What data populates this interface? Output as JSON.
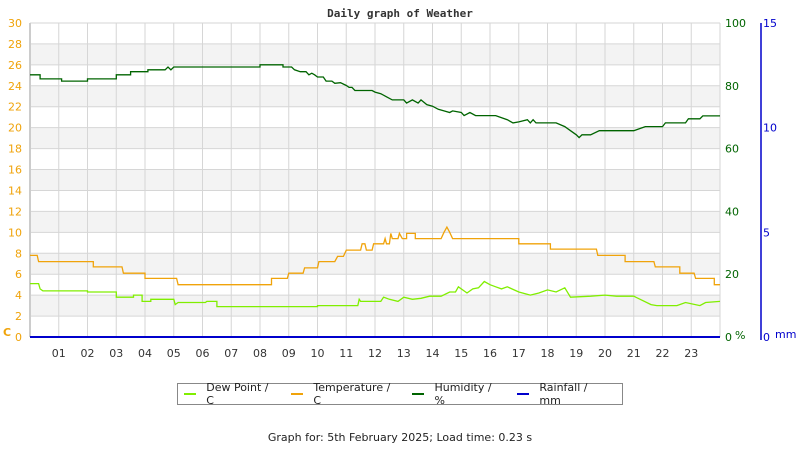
{
  "chart_data": {
    "type": "line",
    "title": "Daily graph of Weather",
    "xlabel": "",
    "x_ticks": [
      "01",
      "02",
      "03",
      "04",
      "05",
      "06",
      "07",
      "08",
      "09",
      "10",
      "11",
      "12",
      "13",
      "14",
      "15",
      "16",
      "17",
      "18",
      "19",
      "20",
      "21",
      "22",
      "23"
    ],
    "axes": {
      "left": {
        "label": "C",
        "ticks": [
          0,
          2,
          4,
          6,
          8,
          10,
          12,
          14,
          16,
          18,
          20,
          22,
          24,
          26,
          28,
          30
        ],
        "range": [
          0,
          30
        ],
        "color": "#f0a30a"
      },
      "right_humidity": {
        "label": "%",
        "ticks": [
          0,
          20,
          40,
          60,
          80,
          100
        ],
        "range": [
          0,
          100
        ],
        "color": "#006400"
      },
      "right_rainfall": {
        "label": "mm",
        "ticks": [
          0,
          5,
          10,
          15
        ],
        "range": [
          0,
          15
        ],
        "color": "#0000cc"
      }
    },
    "x_range": [
      0,
      24
    ],
    "grid": true,
    "legend_position": "bottom",
    "series": [
      {
        "name": "Dew Point / C",
        "axis": "left",
        "color": "#80ee00",
        "points": [
          [
            0,
            5.1
          ],
          [
            0.3,
            5.1
          ],
          [
            0.35,
            4.6
          ],
          [
            0.45,
            4.4
          ],
          [
            2.0,
            4.4
          ],
          [
            2.0,
            4.3
          ],
          [
            3.0,
            4.3
          ],
          [
            3.0,
            3.8
          ],
          [
            3.6,
            3.8
          ],
          [
            3.6,
            4.0
          ],
          [
            3.9,
            4.0
          ],
          [
            3.9,
            3.4
          ],
          [
            4.2,
            3.4
          ],
          [
            4.2,
            3.6
          ],
          [
            5.0,
            3.6
          ],
          [
            5.05,
            3.1
          ],
          [
            5.15,
            3.3
          ],
          [
            6.1,
            3.3
          ],
          [
            6.15,
            3.4
          ],
          [
            6.5,
            3.4
          ],
          [
            6.5,
            2.9
          ],
          [
            10.0,
            2.9
          ],
          [
            10.0,
            3.0
          ],
          [
            11.4,
            3.0
          ],
          [
            11.45,
            3.6
          ],
          [
            11.5,
            3.4
          ],
          [
            12.2,
            3.4
          ],
          [
            12.3,
            3.8
          ],
          [
            12.5,
            3.6
          ],
          [
            12.8,
            3.4
          ],
          [
            13.0,
            3.8
          ],
          [
            13.3,
            3.6
          ],
          [
            13.6,
            3.7
          ],
          [
            13.9,
            3.9
          ],
          [
            14.3,
            3.9
          ],
          [
            14.6,
            4.3
          ],
          [
            14.8,
            4.3
          ],
          [
            14.9,
            4.8
          ],
          [
            15.2,
            4.2
          ],
          [
            15.4,
            4.6
          ],
          [
            15.6,
            4.7
          ],
          [
            15.8,
            5.3
          ],
          [
            16.0,
            5.0
          ],
          [
            16.2,
            4.8
          ],
          [
            16.4,
            4.6
          ],
          [
            16.6,
            4.8
          ],
          [
            17.0,
            4.3
          ],
          [
            17.4,
            4.0
          ],
          [
            17.7,
            4.2
          ],
          [
            18.0,
            4.5
          ],
          [
            18.3,
            4.3
          ],
          [
            18.6,
            4.7
          ],
          [
            18.8,
            3.8
          ],
          [
            19.5,
            3.9
          ],
          [
            20.0,
            4.0
          ],
          [
            20.4,
            3.9
          ],
          [
            21.0,
            3.9
          ],
          [
            21.6,
            3.1
          ],
          [
            21.8,
            3.0
          ],
          [
            22.5,
            3.0
          ],
          [
            22.8,
            3.3
          ],
          [
            23.3,
            3.0
          ],
          [
            23.5,
            3.3
          ],
          [
            24.0,
            3.4
          ]
        ]
      },
      {
        "name": "Temperature / C",
        "axis": "left",
        "color": "#f0a30a",
        "points": [
          [
            0,
            7.8
          ],
          [
            0.25,
            7.8
          ],
          [
            0.3,
            7.2
          ],
          [
            2.2,
            7.2
          ],
          [
            2.2,
            6.7
          ],
          [
            3.2,
            6.7
          ],
          [
            3.25,
            6.1
          ],
          [
            4.0,
            6.1
          ],
          [
            4.0,
            5.6
          ],
          [
            5.1,
            5.6
          ],
          [
            5.15,
            5.0
          ],
          [
            8.4,
            5.0
          ],
          [
            8.4,
            5.6
          ],
          [
            8.95,
            5.6
          ],
          [
            9.0,
            6.1
          ],
          [
            9.5,
            6.1
          ],
          [
            9.55,
            6.6
          ],
          [
            10.0,
            6.6
          ],
          [
            10.05,
            7.2
          ],
          [
            10.6,
            7.2
          ],
          [
            10.7,
            7.7
          ],
          [
            10.9,
            7.7
          ],
          [
            11.0,
            8.3
          ],
          [
            11.5,
            8.3
          ],
          [
            11.55,
            8.9
          ],
          [
            11.65,
            8.9
          ],
          [
            11.7,
            8.3
          ],
          [
            11.9,
            8.3
          ],
          [
            11.95,
            8.9
          ],
          [
            12.3,
            8.9
          ],
          [
            12.35,
            9.4
          ],
          [
            12.4,
            8.9
          ],
          [
            12.5,
            8.9
          ],
          [
            12.55,
            9.9
          ],
          [
            12.6,
            9.4
          ],
          [
            12.8,
            9.4
          ],
          [
            12.85,
            9.9
          ],
          [
            12.95,
            9.4
          ],
          [
            13.1,
            9.4
          ],
          [
            13.1,
            9.9
          ],
          [
            13.4,
            9.9
          ],
          [
            13.4,
            9.4
          ],
          [
            14.3,
            9.4
          ],
          [
            14.4,
            10.0
          ],
          [
            14.5,
            10.5
          ],
          [
            14.6,
            10.0
          ],
          [
            14.7,
            9.4
          ],
          [
            17.0,
            9.4
          ],
          [
            17.0,
            8.9
          ],
          [
            18.1,
            8.9
          ],
          [
            18.1,
            8.4
          ],
          [
            19.7,
            8.4
          ],
          [
            19.75,
            7.8
          ],
          [
            20.7,
            7.8
          ],
          [
            20.7,
            7.2
          ],
          [
            21.7,
            7.2
          ],
          [
            21.75,
            6.7
          ],
          [
            22.6,
            6.7
          ],
          [
            22.6,
            6.1
          ],
          [
            23.1,
            6.1
          ],
          [
            23.15,
            5.6
          ],
          [
            23.8,
            5.6
          ],
          [
            23.8,
            5.0
          ],
          [
            24.0,
            5.0
          ]
        ]
      },
      {
        "name": "Humidity / %",
        "axis": "right_humidity",
        "color": "#006400",
        "points": [
          [
            0,
            83.5
          ],
          [
            0.35,
            83.5
          ],
          [
            0.35,
            82.2
          ],
          [
            1.1,
            82.2
          ],
          [
            1.1,
            81.5
          ],
          [
            2.0,
            81.5
          ],
          [
            2.0,
            82.2
          ],
          [
            3.0,
            82.2
          ],
          [
            3.0,
            83.5
          ],
          [
            3.5,
            83.5
          ],
          [
            3.5,
            84.5
          ],
          [
            4.1,
            84.5
          ],
          [
            4.1,
            85.1
          ],
          [
            4.7,
            85.1
          ],
          [
            4.8,
            86.0
          ],
          [
            4.9,
            85.1
          ],
          [
            5.0,
            86.0
          ],
          [
            8.0,
            86.0
          ],
          [
            8.0,
            86.7
          ],
          [
            8.8,
            86.7
          ],
          [
            8.8,
            86.0
          ],
          [
            9.1,
            86.0
          ],
          [
            9.2,
            85.1
          ],
          [
            9.4,
            84.5
          ],
          [
            9.6,
            84.5
          ],
          [
            9.7,
            83.5
          ],
          [
            9.8,
            84.0
          ],
          [
            9.9,
            83.5
          ],
          [
            10.0,
            82.8
          ],
          [
            10.2,
            82.8
          ],
          [
            10.3,
            81.5
          ],
          [
            10.5,
            81.5
          ],
          [
            10.6,
            80.8
          ],
          [
            10.8,
            81.0
          ],
          [
            11.0,
            80.1
          ],
          [
            11.1,
            79.5
          ],
          [
            11.2,
            79.5
          ],
          [
            11.3,
            78.5
          ],
          [
            11.9,
            78.5
          ],
          [
            12.0,
            78.0
          ],
          [
            12.2,
            77.5
          ],
          [
            12.4,
            76.5
          ],
          [
            12.6,
            75.5
          ],
          [
            13.0,
            75.5
          ],
          [
            13.1,
            74.5
          ],
          [
            13.3,
            75.5
          ],
          [
            13.5,
            74.5
          ],
          [
            13.6,
            75.5
          ],
          [
            13.8,
            74.0
          ],
          [
            14.0,
            73.5
          ],
          [
            14.2,
            72.5
          ],
          [
            14.4,
            72.0
          ],
          [
            14.6,
            71.5
          ],
          [
            14.7,
            72.0
          ],
          [
            15.0,
            71.5
          ],
          [
            15.1,
            70.5
          ],
          [
            15.3,
            71.5
          ],
          [
            15.5,
            70.5
          ],
          [
            16.2,
            70.5
          ],
          [
            16.6,
            69.2
          ],
          [
            16.8,
            68.2
          ],
          [
            17.0,
            68.5
          ],
          [
            17.3,
            69.2
          ],
          [
            17.4,
            68.2
          ],
          [
            17.5,
            69.2
          ],
          [
            17.6,
            68.2
          ],
          [
            18.3,
            68.2
          ],
          [
            18.6,
            67.0
          ],
          [
            18.8,
            65.7
          ],
          [
            19.0,
            64.4
          ],
          [
            19.1,
            63.5
          ],
          [
            19.2,
            64.4
          ],
          [
            19.5,
            64.4
          ],
          [
            19.8,
            65.7
          ],
          [
            21.0,
            65.7
          ],
          [
            21.4,
            67.0
          ],
          [
            22.0,
            67.0
          ],
          [
            22.1,
            68.2
          ],
          [
            22.8,
            68.2
          ],
          [
            22.9,
            69.5
          ],
          [
            23.3,
            69.5
          ],
          [
            23.4,
            70.4
          ],
          [
            24.0,
            70.4
          ]
        ]
      },
      {
        "name": "Rainfall / mm",
        "axis": "right_rainfall",
        "color": "#0000cc",
        "points": [
          [
            0,
            0
          ],
          [
            24,
            0
          ]
        ]
      }
    ]
  },
  "legend": {
    "items": [
      {
        "label": "Dew Point / C",
        "color": "#80ee00"
      },
      {
        "label": "Temperature / C",
        "color": "#f0a30a"
      },
      {
        "label": "Humidity / %",
        "color": "#006400"
      },
      {
        "label": "Rainfall / mm",
        "color": "#0000cc"
      }
    ]
  },
  "footer": {
    "text": "Graph for: 5th February 2025; Load time: 0.23 s"
  }
}
